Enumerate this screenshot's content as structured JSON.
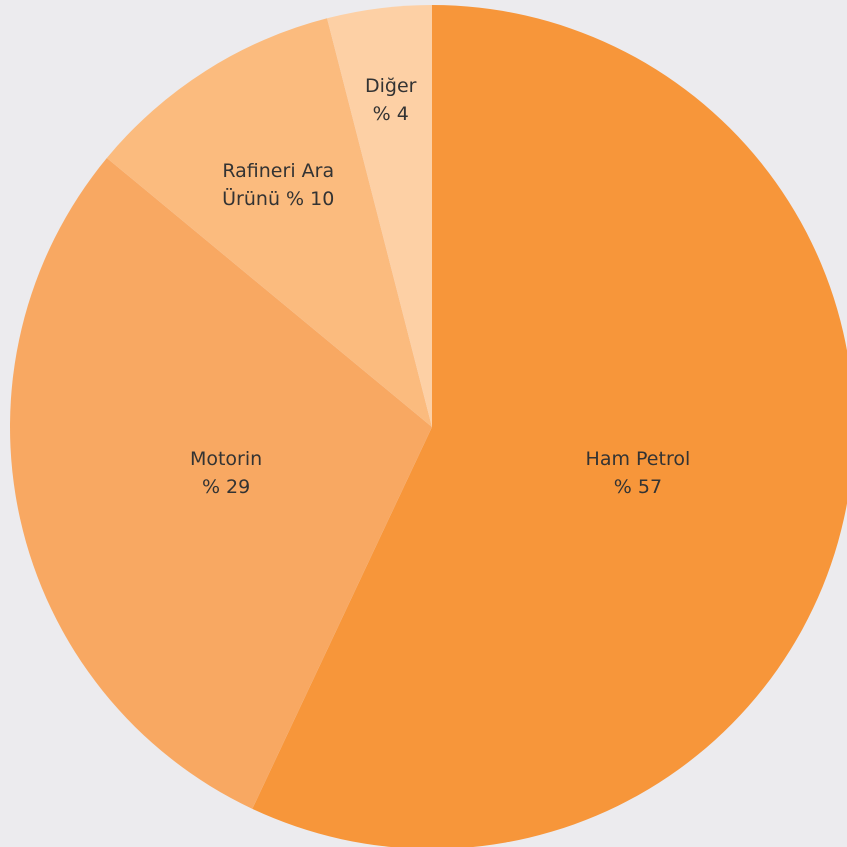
{
  "chart_data": {
    "type": "pie",
    "categories": [
      "Ham Petrol",
      "Motorin",
      "Rafineri Ara Ürünü",
      "Diğer"
    ],
    "values": [
      57,
      29,
      10,
      4
    ],
    "value_labels": [
      "% 57",
      "% 29",
      "% 10",
      "% 4"
    ],
    "colors": [
      "#f7963a",
      "#f8a862",
      "#fbbb7e",
      "#fdd0a5"
    ]
  }
}
